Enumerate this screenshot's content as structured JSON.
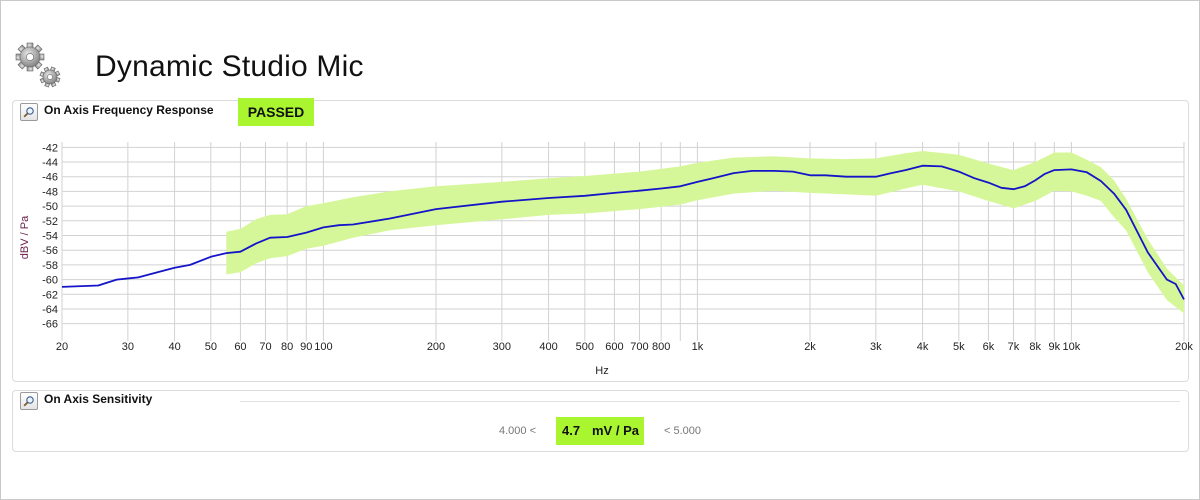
{
  "page": {
    "title": "Dynamic Studio Mic"
  },
  "frequency_response": {
    "label": "On Axis Frequency Response",
    "status": "PASSED"
  },
  "sensitivity": {
    "label": "On Axis Sensitivity",
    "lower_limit": "4.000 <",
    "value": "4.7",
    "unit": "mV / Pa",
    "upper_limit": "< 5.000"
  },
  "colors": {
    "pass": "#a9f530",
    "band": "#d6f799",
    "curve": "#1414c8",
    "grid": "#d2d2d2",
    "ylabel": "#6a1e4a"
  },
  "icons": [
    "gears-icon",
    "zoom-icon"
  ],
  "chart_data": {
    "type": "line",
    "xlabel": "Hz",
    "ylabel": "dBV / Pa",
    "x_scale": "log",
    "xlim": [
      20,
      20000
    ],
    "ylim": [
      -67,
      -41
    ],
    "y_ticks": [
      "-42",
      "-44",
      "-46",
      "-48",
      "-50",
      "-52",
      "-54",
      "-56",
      "-58",
      "-60",
      "-62",
      "-64",
      "-66"
    ],
    "x_tick_values": [
      20,
      30,
      40,
      50,
      60,
      70,
      80,
      90,
      100,
      200,
      300,
      400,
      500,
      600,
      700,
      800,
      1000,
      2000,
      3000,
      4000,
      5000,
      6000,
      7000,
      8000,
      9000,
      10000,
      20000
    ],
    "x_tick_labels": [
      "20",
      "30",
      "40",
      "50",
      "60",
      "70",
      "80",
      "90",
      "100",
      "200",
      "300",
      "400",
      "500",
      "600",
      "700",
      "800",
      "1k",
      "2k",
      "3k",
      "4k",
      "5k",
      "6k",
      "7k",
      "8k",
      "9k",
      "10k",
      "20k"
    ],
    "grid": true,
    "series": [
      {
        "role": "measured",
        "x": [
          20,
          25,
          28,
          32,
          36,
          40,
          44,
          50,
          55,
          60,
          66,
          72,
          80,
          90,
          100,
          110,
          120,
          150,
          200,
          300,
          400,
          500,
          600,
          700,
          800,
          900,
          1000,
          1100,
          1250,
          1400,
          1600,
          1800,
          2000,
          2200,
          2500,
          2800,
          3000,
          3300,
          3600,
          4000,
          4500,
          5000,
          5500,
          6000,
          6500,
          7000,
          7500,
          8000,
          8500,
          9000,
          10000,
          11000,
          12000,
          13000,
          14000,
          16000,
          18000,
          19000,
          20000
        ],
        "y": [
          -61.0,
          -60.8,
          -60.0,
          -59.7,
          -59.0,
          -58.4,
          -58.0,
          -56.9,
          -56.4,
          -56.2,
          -55.1,
          -54.3,
          -54.2,
          -53.6,
          -52.9,
          -52.6,
          -52.5,
          -51.7,
          -50.4,
          -49.4,
          -48.9,
          -48.6,
          -48.2,
          -47.9,
          -47.6,
          -47.3,
          -46.7,
          -46.2,
          -45.5,
          -45.2,
          -45.2,
          -45.3,
          -45.8,
          -45.8,
          -46.0,
          -46.0,
          -46.0,
          -45.5,
          -45.1,
          -44.5,
          -44.6,
          -45.3,
          -46.2,
          -46.8,
          -47.5,
          -47.7,
          -47.3,
          -46.5,
          -45.6,
          -45.1,
          -45.0,
          -45.4,
          -46.6,
          -48.3,
          -50.5,
          -56.3,
          -60.0,
          -60.6,
          -62.7
        ]
      },
      {
        "role": "tolerance-band",
        "x": [
          55,
          60,
          66,
          72,
          80,
          90,
          100,
          120,
          150,
          200,
          300,
          400,
          500,
          700,
          900,
          1000,
          1250,
          1600,
          2000,
          2500,
          3000,
          3600,
          4000,
          5000,
          6000,
          7000,
          8000,
          9000,
          10000,
          11000,
          12000,
          13000,
          14000,
          16000,
          18000,
          20000
        ],
        "upper": [
          -53.5,
          -53.1,
          -51.8,
          -51.2,
          -51.1,
          -50.0,
          -49.6,
          -48.8,
          -48.0,
          -47.3,
          -46.7,
          -46.2,
          -45.9,
          -45.3,
          -44.6,
          -44.1,
          -43.4,
          -43.2,
          -43.5,
          -43.6,
          -43.5,
          -42.8,
          -42.5,
          -43.0,
          -44.2,
          -45.1,
          -44.0,
          -42.7,
          -42.7,
          -43.7,
          -44.7,
          -46.5,
          -49.0,
          -54.5,
          -58.5,
          -60.8
        ],
        "lower": [
          -59.3,
          -59.0,
          -57.8,
          -57.1,
          -56.8,
          -55.8,
          -55.4,
          -54.3,
          -53.3,
          -52.6,
          -51.8,
          -51.2,
          -51.0,
          -50.4,
          -49.8,
          -49.2,
          -48.3,
          -47.9,
          -48.2,
          -48.4,
          -48.6,
          -47.6,
          -47.1,
          -48.0,
          -49.3,
          -50.3,
          -49.3,
          -47.9,
          -48.0,
          -48.6,
          -49.3,
          -51.5,
          -53.3,
          -59.0,
          -62.8,
          -64.6
        ]
      }
    ]
  }
}
